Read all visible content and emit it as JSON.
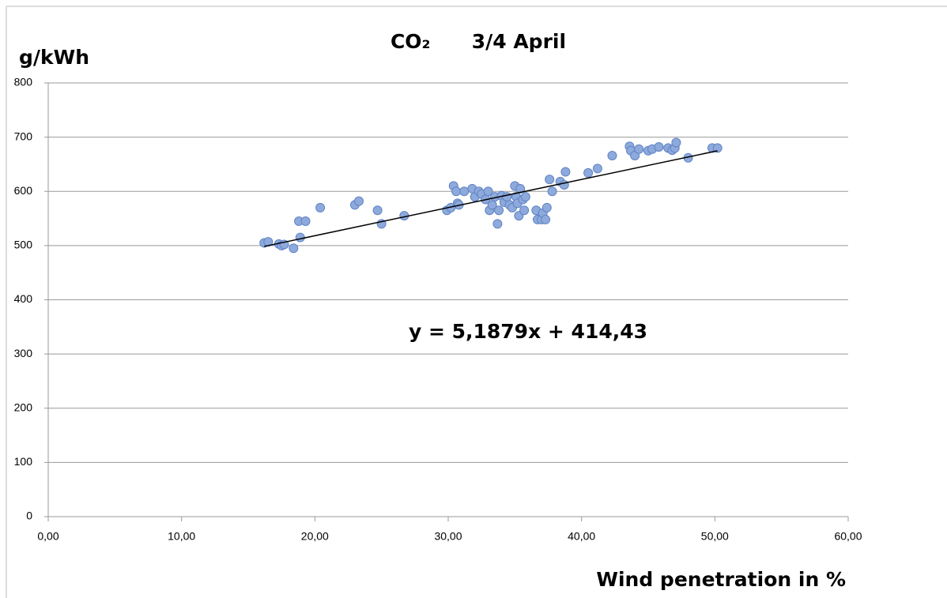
{
  "chart_data": {
    "type": "scatter",
    "title": "CO₂      3/4 April",
    "y_label": "g/kWh",
    "x_label": "Wind penetration in %",
    "annotation": "y = 5,1879x + 414,43",
    "trendline": {
      "slope": 5.1879,
      "intercept": 414.43,
      "color": "#000000"
    },
    "color": "#8eaadc",
    "edge_color": "#5f83c4",
    "xlim": [
      0,
      60
    ],
    "xticks": [
      {
        "value": 0,
        "label": "0,00"
      },
      {
        "value": 10,
        "label": "10,00"
      },
      {
        "value": 20,
        "label": "20,00"
      },
      {
        "value": 30,
        "label": "30,00"
      },
      {
        "value": 40,
        "label": "40,00"
      },
      {
        "value": 50,
        "label": "50,00"
      },
      {
        "value": 60,
        "label": "60,00"
      }
    ],
    "ylim": [
      0,
      800
    ],
    "yticks": [
      0,
      100,
      200,
      300,
      400,
      500,
      600,
      700,
      800
    ],
    "grid": true,
    "x": [
      16.2,
      16.5,
      17.3,
      17.5,
      17.7,
      18.4,
      18.8,
      18.9,
      19.3,
      20.4,
      23.0,
      23.3,
      24.7,
      25.0,
      26.7,
      29.9,
      30.2,
      30.4,
      30.6,
      30.7,
      30.8,
      31.2,
      31.8,
      32.0,
      32.3,
      32.5,
      32.8,
      33.0,
      33.1,
      33.3,
      33.5,
      33.7,
      33.8,
      34.0,
      34.2,
      34.4,
      34.6,
      34.8,
      35.0,
      35.1,
      35.2,
      35.3,
      35.4,
      35.6,
      35.7,
      35.8,
      36.6,
      36.7,
      37.0,
      37.1,
      37.3,
      37.4,
      37.6,
      37.8,
      38.4,
      38.7,
      38.8,
      40.5,
      41.2,
      42.3,
      43.6,
      43.7,
      44.0,
      44.3,
      45.0,
      45.3,
      45.8,
      46.5,
      46.8,
      47.0,
      47.1,
      48.0,
      49.8,
      50.2
    ],
    "values": [
      505,
      507,
      503,
      500,
      502,
      495,
      545,
      515,
      545,
      570,
      575,
      582,
      565,
      540,
      555,
      565,
      570,
      610,
      600,
      578,
      575,
      600,
      605,
      590,
      600,
      595,
      585,
      600,
      565,
      575,
      590,
      540,
      565,
      592,
      580,
      590,
      575,
      570,
      610,
      590,
      578,
      555,
      605,
      585,
      565,
      590,
      565,
      548,
      548,
      560,
      548,
      570,
      622,
      600,
      618,
      612,
      636,
      634,
      642,
      666,
      683,
      675,
      666,
      678,
      675,
      678,
      682,
      680,
      676,
      680,
      690,
      662,
      680,
      680
    ]
  }
}
